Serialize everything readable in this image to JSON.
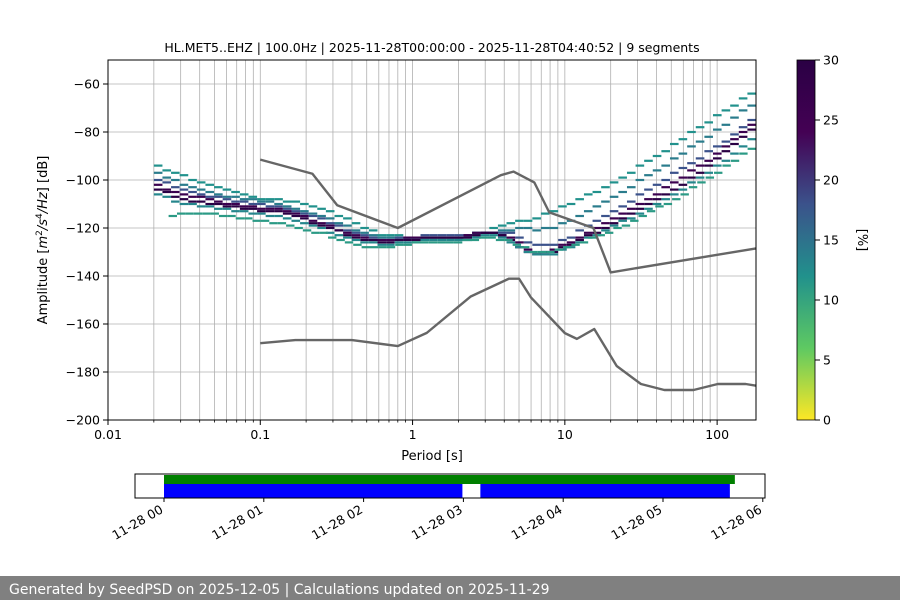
{
  "chart_data": {
    "type": "heatmap",
    "title": "HL.MET5..EHZ | 100.0Hz | 2025-11-28T00:00:00 - 2025-11-28T04:40:52 | 9 segments",
    "xlabel": "Period [s]",
    "ylabel_parts": [
      "Amplitude [",
      "m",
      "2",
      "/",
      "s",
      "4",
      "/",
      "Hz",
      "] [dB]"
    ],
    "xscale": "log",
    "xlim": [
      0.01,
      180
    ],
    "ylim": [
      -200,
      -50
    ],
    "xticks": [
      {
        "value": 0.01,
        "label": "0.01"
      },
      {
        "value": 0.1,
        "label": "0.1"
      },
      {
        "value": 1,
        "label": "1"
      },
      {
        "value": 10,
        "label": "10"
      },
      {
        "value": 100,
        "label": "100"
      }
    ],
    "yticks": [
      {
        "value": -60,
        "label": "−60"
      },
      {
        "value": -80,
        "label": "−80"
      },
      {
        "value": -100,
        "label": "−100"
      },
      {
        "value": -120,
        "label": "−120"
      },
      {
        "value": -140,
        "label": "−140"
      },
      {
        "value": -160,
        "label": "−160"
      },
      {
        "value": -180,
        "label": "−180"
      },
      {
        "value": -200,
        "label": "−200"
      }
    ],
    "grid_x_from": 0.02,
    "grid": true,
    "noise_model_high": [
      [
        0.1,
        -91.5
      ],
      [
        0.22,
        -97.4
      ],
      [
        0.32,
        -110.5
      ],
      [
        0.8,
        -120.0
      ],
      [
        3.8,
        -98.0
      ],
      [
        4.6,
        -96.5
      ],
      [
        6.3,
        -101.0
      ],
      [
        7.9,
        -113.5
      ],
      [
        15.4,
        -120.0
      ],
      [
        20.0,
        -138.5
      ],
      [
        180,
        -128.5
      ]
    ],
    "noise_model_low": [
      [
        0.1,
        -168.0
      ],
      [
        0.17,
        -166.7
      ],
      [
        0.4,
        -166.7
      ],
      [
        0.8,
        -169.2
      ],
      [
        1.24,
        -163.7
      ],
      [
        2.4,
        -148.6
      ],
      [
        4.3,
        -141.1
      ],
      [
        5.0,
        -141.1
      ],
      [
        6.0,
        -149.0
      ],
      [
        10.0,
        -163.8
      ],
      [
        12.0,
        -166.2
      ],
      [
        15.6,
        -162.1
      ],
      [
        21.9,
        -177.5
      ],
      [
        31.6,
        -185.0
      ],
      [
        45.0,
        -187.5
      ],
      [
        70.0,
        -187.5
      ],
      [
        101.0,
        -185.0
      ],
      [
        154.0,
        -185.0
      ],
      [
        180,
        -185.7
      ]
    ],
    "psd_bands": [
      {
        "pct": 12,
        "points": [
          [
            0.02,
            -94.5
          ],
          [
            0.03,
            -98.5
          ],
          [
            0.05,
            -103.5
          ],
          [
            0.08,
            -107
          ],
          [
            0.15,
            -109
          ],
          [
            0.25,
            -112
          ],
          [
            0.4,
            -118
          ],
          [
            0.6,
            -123
          ],
          [
            1.0,
            -124
          ],
          [
            2.0,
            -124
          ],
          [
            3.0,
            -121
          ],
          [
            4.0,
            -118
          ],
          [
            5.0,
            -117
          ],
          [
            6.0,
            -116
          ],
          [
            8.0,
            -113
          ],
          [
            10.0,
            -110
          ],
          [
            20.0,
            -101
          ],
          [
            50.0,
            -85
          ],
          [
            100.0,
            -72
          ],
          [
            180,
            -62
          ]
        ]
      },
      {
        "pct": 14,
        "points": [
          [
            0.02,
            -97.5
          ],
          [
            0.03,
            -102
          ],
          [
            0.05,
            -106
          ],
          [
            0.08,
            -108
          ],
          [
            0.15,
            -111
          ],
          [
            0.25,
            -115
          ],
          [
            0.4,
            -121
          ],
          [
            0.6,
            -124.5
          ],
          [
            1.0,
            -124
          ],
          [
            2.0,
            -124
          ],
          [
            3.0,
            -122
          ],
          [
            4.0,
            -121
          ],
          [
            5.0,
            -120
          ],
          [
            6.0,
            -121
          ],
          [
            8.0,
            -120
          ],
          [
            10.0,
            -117
          ],
          [
            20.0,
            -107
          ],
          [
            50.0,
            -91
          ],
          [
            100.0,
            -78
          ],
          [
            180,
            -66
          ]
        ]
      },
      {
        "pct": 18,
        "points": [
          [
            0.02,
            -100
          ],
          [
            0.03,
            -104
          ],
          [
            0.05,
            -107.5
          ],
          [
            0.08,
            -109.5
          ],
          [
            0.15,
            -112
          ],
          [
            0.25,
            -117
          ],
          [
            0.4,
            -122.5
          ],
          [
            0.6,
            -125
          ],
          [
            1.0,
            -123.5
          ],
          [
            2.0,
            -123
          ],
          [
            3.0,
            -121.5
          ],
          [
            4.0,
            -122
          ],
          [
            5.0,
            -125
          ],
          [
            6.0,
            -127
          ],
          [
            8.0,
            -127
          ],
          [
            10.0,
            -124
          ],
          [
            20.0,
            -113
          ],
          [
            50.0,
            -97
          ],
          [
            100.0,
            -85
          ],
          [
            180,
            -72
          ]
        ]
      },
      {
        "pct": 26,
        "points": [
          [
            0.02,
            -102.5
          ],
          [
            0.03,
            -106
          ],
          [
            0.05,
            -109
          ],
          [
            0.08,
            -111
          ],
          [
            0.15,
            -113
          ],
          [
            0.25,
            -118.5
          ],
          [
            0.4,
            -123.5
          ],
          [
            0.6,
            -125.5
          ],
          [
            1.0,
            -124
          ],
          [
            2.0,
            -123.5
          ],
          [
            3.0,
            -121.5
          ],
          [
            4.0,
            -123
          ],
          [
            5.0,
            -127.5
          ],
          [
            6.0,
            -131
          ],
          [
            8.0,
            -129
          ],
          [
            10.0,
            -126
          ],
          [
            20.0,
            -116
          ],
          [
            50.0,
            -101
          ],
          [
            100.0,
            -88
          ],
          [
            180,
            -74
          ]
        ]
      },
      {
        "pct": 30,
        "points": [
          [
            0.02,
            -104
          ],
          [
            0.03,
            -108
          ],
          [
            0.05,
            -110.5
          ],
          [
            0.08,
            -112
          ],
          [
            0.15,
            -114
          ],
          [
            0.25,
            -119.5
          ],
          [
            0.4,
            -124
          ],
          [
            0.6,
            -126
          ],
          [
            1.0,
            -124.5
          ],
          [
            2.0,
            -124
          ],
          [
            3.0,
            -122
          ],
          [
            4.0,
            -124
          ],
          [
            5.0,
            -129
          ],
          [
            6.0,
            -131.5
          ],
          [
            8.0,
            -130
          ],
          [
            10.0,
            -127
          ],
          [
            20.0,
            -118
          ],
          [
            50.0,
            -104
          ],
          [
            100.0,
            -90
          ],
          [
            180,
            -76
          ]
        ]
      },
      {
        "pct": 13,
        "points": [
          [
            0.02,
            -106
          ],
          [
            0.03,
            -110
          ],
          [
            0.05,
            -112
          ],
          [
            0.08,
            -113.5
          ],
          [
            0.15,
            -116
          ],
          [
            0.25,
            -121
          ],
          [
            0.4,
            -125
          ],
          [
            0.6,
            -127
          ],
          [
            1.0,
            -125.5
          ],
          [
            2.0,
            -125
          ],
          [
            3.0,
            -123
          ],
          [
            4.0,
            -125
          ],
          [
            5.0,
            -129
          ],
          [
            6.0,
            -131.5
          ],
          [
            8.0,
            -131
          ],
          [
            10.0,
            -128
          ],
          [
            20.0,
            -119
          ],
          [
            50.0,
            -106
          ],
          [
            100.0,
            -93
          ],
          [
            180,
            -80
          ]
        ]
      },
      {
        "pct": 11,
        "points": [
          [
            0.025,
            -115
          ],
          [
            0.03,
            -114
          ],
          [
            0.05,
            -114.5
          ],
          [
            0.08,
            -116
          ],
          [
            0.15,
            -119
          ],
          [
            0.25,
            -122.5
          ],
          [
            0.4,
            -127
          ],
          [
            0.6,
            -128.5
          ],
          [
            1.0,
            -126
          ],
          [
            2.0,
            -125.5
          ],
          [
            3.0,
            -124
          ],
          [
            4.0,
            -125
          ],
          [
            5.0,
            -128
          ],
          [
            6.0,
            -130
          ],
          [
            8.0,
            -130
          ],
          [
            10.0,
            -128
          ],
          [
            20.0,
            -121
          ],
          [
            50.0,
            -108
          ],
          [
            100.0,
            -96
          ],
          [
            180,
            -84
          ]
        ]
      }
    ],
    "colorbar": {
      "label": "[%]",
      "min": 0,
      "max": 30,
      "ticks": [
        {
          "value": 0,
          "label": "0"
        },
        {
          "value": 5,
          "label": "5"
        },
        {
          "value": 10,
          "label": "10"
        },
        {
          "value": 15,
          "label": "15"
        },
        {
          "value": 20,
          "label": "20"
        },
        {
          "value": 25,
          "label": "25"
        },
        {
          "value": 30,
          "label": "30"
        }
      ],
      "stops": [
        "#fde725",
        "#5ec962",
        "#21918c",
        "#3b528b",
        "#440154",
        "#2a0044"
      ]
    }
  },
  "timeline": {
    "range_hours": [
      0,
      6.05
    ],
    "coverage_green": [
      [
        0,
        5.72
      ]
    ],
    "coverage_blue": [
      [
        0,
        2.99
      ],
      [
        3.17,
        5.67
      ]
    ],
    "green_color": "#008000",
    "blue_color": "#0000ff",
    "ticks": [
      {
        "value": 0,
        "label": "11-28 00"
      },
      {
        "value": 1,
        "label": "11-28 01"
      },
      {
        "value": 2,
        "label": "11-28 02"
      },
      {
        "value": 3,
        "label": "11-28 03"
      },
      {
        "value": 4,
        "label": "11-28 04"
      },
      {
        "value": 5,
        "label": "11-28 05"
      },
      {
        "value": 6,
        "label": "11-28 06"
      }
    ]
  },
  "footer": {
    "text": "Generated by SeedPSD on 2025-12-05 | Calculations updated on 2025-11-29"
  }
}
